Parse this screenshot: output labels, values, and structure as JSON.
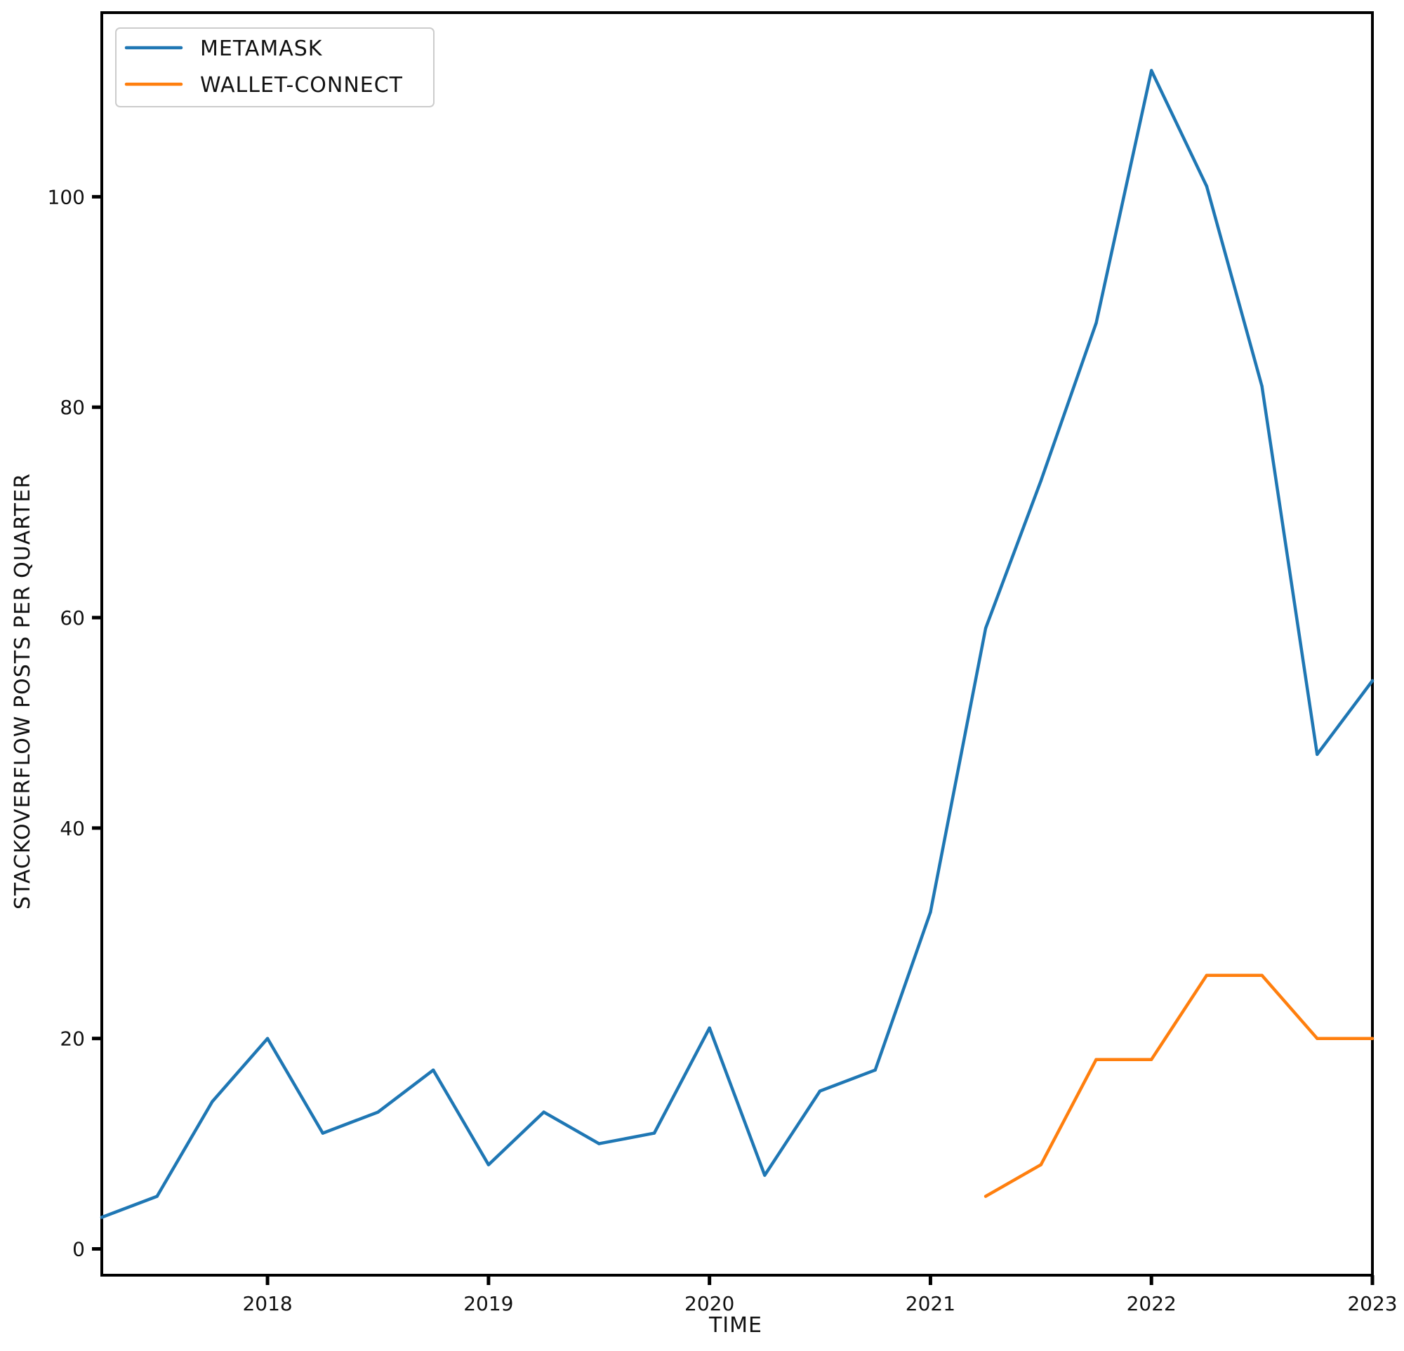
{
  "chart_data": {
    "type": "line",
    "title": "",
    "xlabel": "TIME",
    "ylabel": "STACKOVERFLOW POSTS PER QUARTER",
    "xlim": [
      2017.25,
      2023.0
    ],
    "ylim": [
      -2.5,
      117.5
    ],
    "x_ticks": [
      2018,
      2019,
      2020,
      2021,
      2022,
      2023
    ],
    "x_tick_labels": [
      "2018",
      "2019",
      "2020",
      "2021",
      "2022",
      "2023"
    ],
    "y_ticks": [
      0,
      20,
      40,
      60,
      80,
      100
    ],
    "y_tick_labels": [
      "0",
      "20",
      "40",
      "60",
      "80",
      "100"
    ],
    "grid": false,
    "legend_position": "top-left",
    "series": [
      {
        "name": "METAMASK",
        "color": "#1f77b4",
        "x": [
          2017.25,
          2017.5,
          2017.75,
          2018.0,
          2018.25,
          2018.5,
          2018.75,
          2019.0,
          2019.25,
          2019.5,
          2019.75,
          2020.0,
          2020.25,
          2020.5,
          2020.75,
          2021.0,
          2021.25,
          2021.5,
          2021.75,
          2022.0,
          2022.25,
          2022.5,
          2022.75,
          2023.0
        ],
        "values": [
          3,
          5,
          14,
          20,
          11,
          13,
          17,
          8,
          13,
          10,
          11,
          21,
          7,
          15,
          17,
          32,
          59,
          73,
          88,
          112,
          101,
          82,
          47,
          54
        ]
      },
      {
        "name": "WALLET-CONNECT",
        "color": "#ff7f0e",
        "x": [
          2021.25,
          2021.5,
          2021.75,
          2022.0,
          2022.25,
          2022.5,
          2022.75,
          2023.0
        ],
        "values": [
          5,
          8,
          18,
          18,
          26,
          26,
          20,
          20
        ]
      }
    ]
  }
}
